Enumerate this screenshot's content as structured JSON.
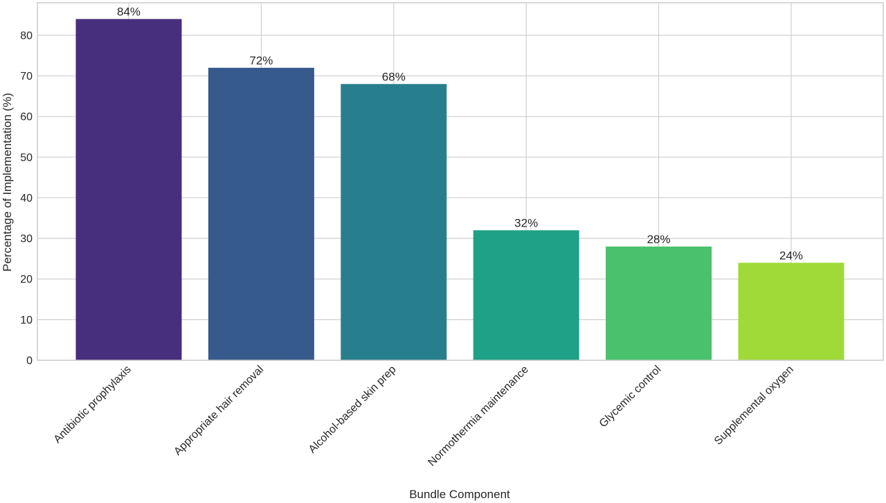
{
  "chart_data": {
    "type": "bar",
    "title": "",
    "xlabel": "Bundle Component",
    "ylabel": "Percentage of Implementation (%)",
    "categories": [
      "Antibiotic prophylaxis",
      "Appropriate hair removal",
      "Alcohol-based skin prep",
      "Normothermia maintenance",
      "Glycemic control",
      "Supplemental oxygen"
    ],
    "values": [
      84,
      72,
      68,
      32,
      28,
      24
    ],
    "data_labels": [
      "84%",
      "72%",
      "68%",
      "32%",
      "28%",
      "24%"
    ],
    "colors": [
      "#472f7d",
      "#375a8c",
      "#277f8e",
      "#1fa187",
      "#4ac16d",
      "#a0da39"
    ],
    "ylim": [
      0,
      88
    ],
    "yticks": [
      0,
      10,
      20,
      30,
      40,
      50,
      60,
      70,
      80
    ],
    "grid": true,
    "legend": "none"
  }
}
